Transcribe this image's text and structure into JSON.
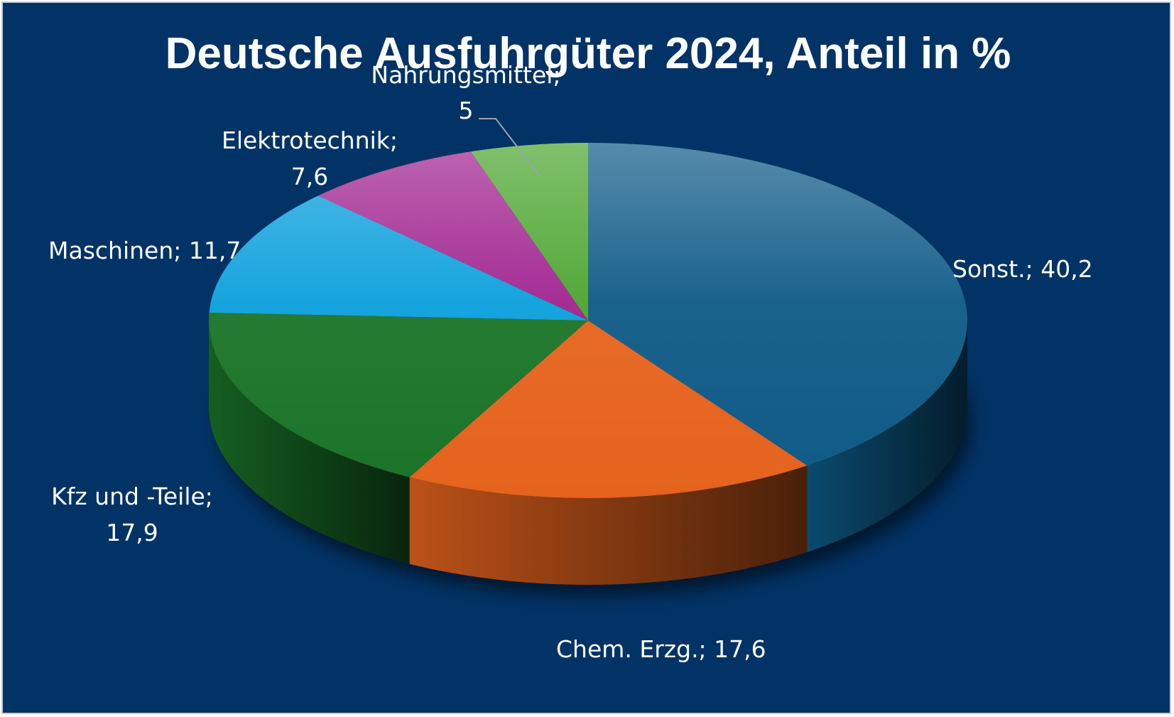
{
  "chart_data": {
    "type": "pie",
    "title": "Deutsche Ausfuhrgüter 2024, Anteil in %",
    "categories": [
      "Sonst.",
      "Chem. Erzg.",
      "Kfz und -Teile",
      "Maschinen",
      "Elektrotechnik",
      "Nahrungsmittel"
    ],
    "values": [
      40.2,
      17.6,
      17.9,
      11.7,
      7.6,
      5
    ],
    "data_labels": [
      "Sonst.; 40,2",
      "Chem. Erzg.; 17,6",
      "Kfz und -Teile; 17,9",
      "Maschinen; 11,7",
      "Elektrotechnik; 7,6",
      "Nahrungsmittel; 5"
    ],
    "legend": "none",
    "style": "3d-pie",
    "colors": [
      "#0e5a86",
      "#e5631d",
      "#1a7428",
      "#0a9fdc",
      "#a0238f",
      "#4aa52e"
    ],
    "background": "#023366"
  }
}
